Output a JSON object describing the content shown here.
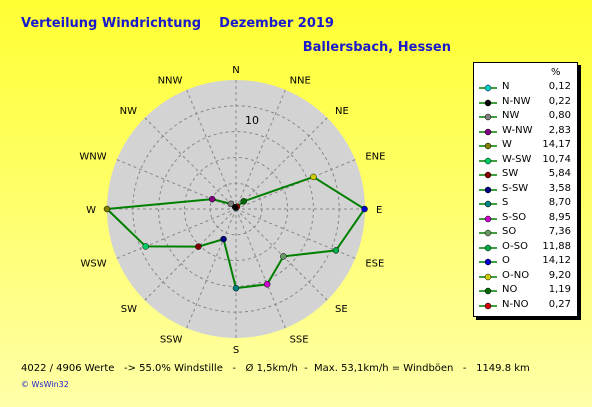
{
  "header": {
    "title": "Verteilung Windrichtung    Dezember 2019",
    "location": "Ballersbach, Hessen"
  },
  "footer": {
    "summary": "4022 / 4906 Werte   -> 55.0% Windstille   -   Ø 1,5km/h  -  Max. 53,1km/h = Windböen   -   1149.8 km",
    "logo": "© WsWin32"
  },
  "chart_data": {
    "type": "radar",
    "max": 14.17,
    "ring_label": "10",
    "legend_header": "%",
    "series": [
      {
        "label": "N",
        "value": 0.12,
        "display": "0,12",
        "color": "#00cccc"
      },
      {
        "label": "N-NW",
        "value": 0.22,
        "display": "0,22",
        "color": "#000000"
      },
      {
        "label": "NW",
        "value": 0.8,
        "display": "0,80",
        "color": "#808080"
      },
      {
        "label": "W-NW",
        "value": 2.83,
        "display": "2,83",
        "color": "#800080"
      },
      {
        "label": "W",
        "value": 14.17,
        "display": "14,17",
        "color": "#808000"
      },
      {
        "label": "W-SW",
        "value": 10.74,
        "display": "10,74",
        "color": "#00cc66"
      },
      {
        "label": "SW",
        "value": 5.84,
        "display": "5,84",
        "color": "#800000"
      },
      {
        "label": "S-SW",
        "value": 3.58,
        "display": "3,58",
        "color": "#000080"
      },
      {
        "label": "S",
        "value": 8.7,
        "display": "8,70",
        "color": "#008080"
      },
      {
        "label": "S-SO",
        "value": 8.95,
        "display": "8,95",
        "color": "#cc00cc"
      },
      {
        "label": "SO",
        "value": 7.36,
        "display": "7,36",
        "color": "#669966"
      },
      {
        "label": "O-SO",
        "value": 11.88,
        "display": "11,88",
        "color": "#00aa44"
      },
      {
        "label": "O",
        "value": 14.12,
        "display": "14,12",
        "color": "#0000cc"
      },
      {
        "label": "O-NO",
        "value": 9.2,
        "display": "9,20",
        "color": "#cccc00"
      },
      {
        "label": "NO",
        "value": 1.19,
        "display": "1,19",
        "color": "#006600"
      },
      {
        "label": "N-NO",
        "value": 0.27,
        "display": "0,27",
        "color": "#cc0000"
      }
    ],
    "axis_directions": [
      {
        "label": "N",
        "value": 0.12
      },
      {
        "label": "NNE",
        "value": 0.27
      },
      {
        "label": "NE",
        "value": 1.19
      },
      {
        "label": "ENE",
        "value": 9.2
      },
      {
        "label": "E",
        "value": 14.12
      },
      {
        "label": "ESE",
        "value": 11.88
      },
      {
        "label": "SE",
        "value": 7.36
      },
      {
        "label": "SSE",
        "value": 8.95
      },
      {
        "label": "S",
        "value": 8.7
      },
      {
        "label": "SSW",
        "value": 3.58
      },
      {
        "label": "SW",
        "value": 5.84
      },
      {
        "label": "WSW",
        "value": 10.74
      },
      {
        "label": "W",
        "value": 14.17
      },
      {
        "label": "WNW",
        "value": 2.83
      },
      {
        "label": "NW",
        "value": 0.8
      },
      {
        "label": "NNW",
        "value": 0.22
      }
    ],
    "colors": {
      "polygon": "#008000",
      "circle_fill": "#d3d3d3",
      "ring": "#888888"
    }
  }
}
